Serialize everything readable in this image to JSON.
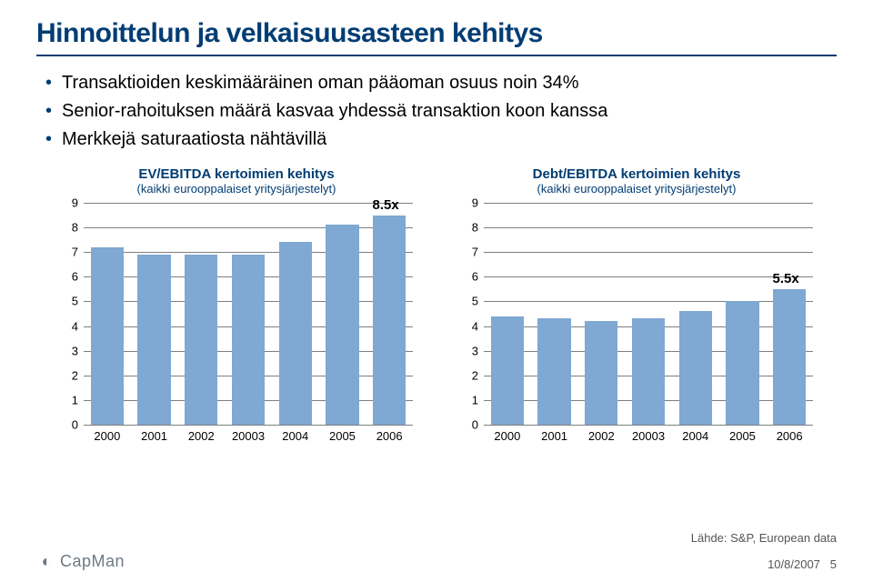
{
  "page": {
    "title": "Hinnoittelun ja velkaisuusasteen kehitys",
    "title_color": "#003d73",
    "rule_color": "#003d73",
    "bullet_color": "#003d73",
    "text_color": "#000000",
    "bullets": [
      "Transaktioiden keskimääräinen oman pääoman osuus noin 34%",
      "Senior-rahoituksen määrä kasvaa yhdessä transaktion koon kanssa",
      "Merkkejä saturaatiosta nähtävillä"
    ]
  },
  "chart_left": {
    "title": "EV/EBITDA kertoimien kehitys",
    "subtitle": "(kaikki eurooppalaiset yritysjärjestelyt)",
    "title_color": "#003d73",
    "type": "bar",
    "categories": [
      "2000",
      "2001",
      "2002",
      "20003",
      "2004",
      "2005",
      "2006"
    ],
    "values": [
      7.2,
      6.9,
      6.9,
      6.9,
      7.4,
      8.1,
      8.5
    ],
    "bar_color": "#7fa8d2",
    "grid_color": "#7f7f7f",
    "bar_width": 0.7,
    "ylim": [
      0,
      9
    ],
    "ytick_step": 1,
    "callout": {
      "text": "8.5x",
      "at_index": 6
    }
  },
  "chart_right": {
    "title": "Debt/EBITDA kertoimien kehitys",
    "subtitle": "(kaikki eurooppalaiset yritysjärjestelyt)",
    "title_color": "#003d73",
    "type": "bar",
    "categories": [
      "2000",
      "2001",
      "2002",
      "20003",
      "2004",
      "2005",
      "2006"
    ],
    "values": [
      4.4,
      4.3,
      4.2,
      4.3,
      4.6,
      5.0,
      5.5
    ],
    "bar_color": "#7fa8d2",
    "grid_color": "#7f7f7f",
    "bar_width": 0.7,
    "ylim": [
      0,
      9
    ],
    "ytick_step": 1,
    "callout": {
      "text": "5.5x",
      "at_index": 6
    }
  },
  "footer": {
    "source": "Lähde: S&P, European data",
    "date": "10/8/2007",
    "page_num": "5",
    "logo_text": "CapMan",
    "logo_color": "#6e7a84"
  }
}
